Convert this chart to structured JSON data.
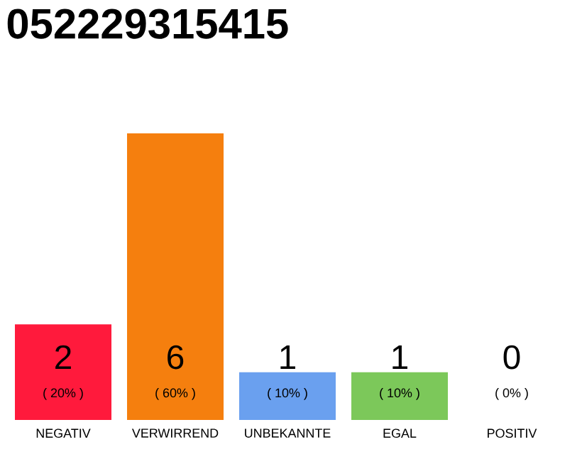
{
  "chart_data": {
    "type": "bar",
    "title": "052229315415",
    "categories": [
      "NEGATIV",
      "VERWIRREND",
      "UNBEKANNTE",
      "EGAL",
      "POSITIV"
    ],
    "values": [
      2,
      6,
      1,
      1,
      0
    ],
    "colors": [
      "#ff1a3c",
      "#f57f0e",
      "#6aa0ef",
      "#7cc85a",
      "#c8c8c8"
    ],
    "ylim": [
      0,
      6
    ],
    "data_labels": true,
    "annotations": [
      "( 20% )",
      "( 60% )",
      "( 10% )",
      "( 10% )",
      "( 0% )"
    ]
  }
}
